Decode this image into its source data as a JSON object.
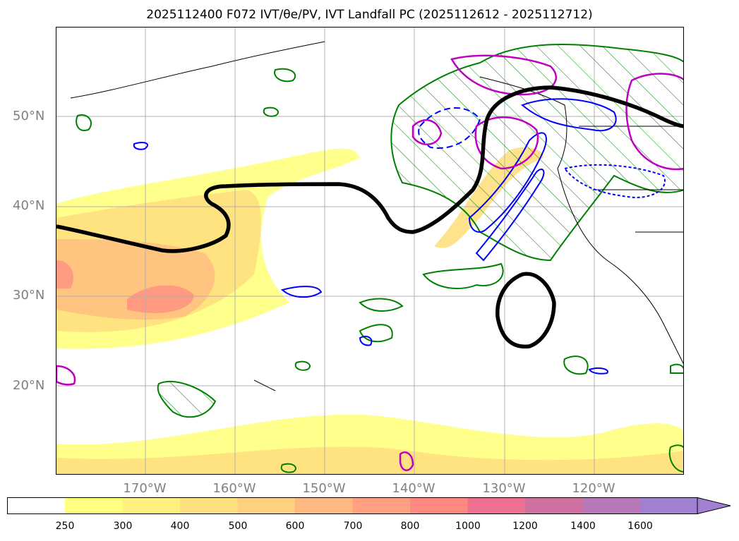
{
  "title": "2025112400 F072 IVT/θe/PV, IVT Landfall PC (2025112612 - 2025112712)",
  "lat_labels": [
    "50°N",
    "40°N",
    "30°N",
    "20°N"
  ],
  "lon_labels": [
    "170°W",
    "160°W",
    "150°W",
    "140°W",
    "130°W",
    "120°W"
  ],
  "colorbar": {
    "ticks": [
      "250",
      "300",
      "400",
      "500",
      "600",
      "700",
      "800",
      "1000",
      "1200",
      "1400",
      "1600"
    ],
    "colors": [
      "#ffffff",
      "#ffff80",
      "#fff080",
      "#ffe080",
      "#ffd080",
      "#ffb880",
      "#ffa080",
      "#ff8880",
      "#ee7090",
      "#d070a0",
      "#b878b8",
      "#a080d0"
    ],
    "extend": "max"
  },
  "legend_colors": {
    "ivt_fill": "#ffd080",
    "pv_contour": "#000000",
    "theta_e_positive": "#008000",
    "theta_e_negative": "#0000ff",
    "landfall_pc": "#c000c0"
  }
}
